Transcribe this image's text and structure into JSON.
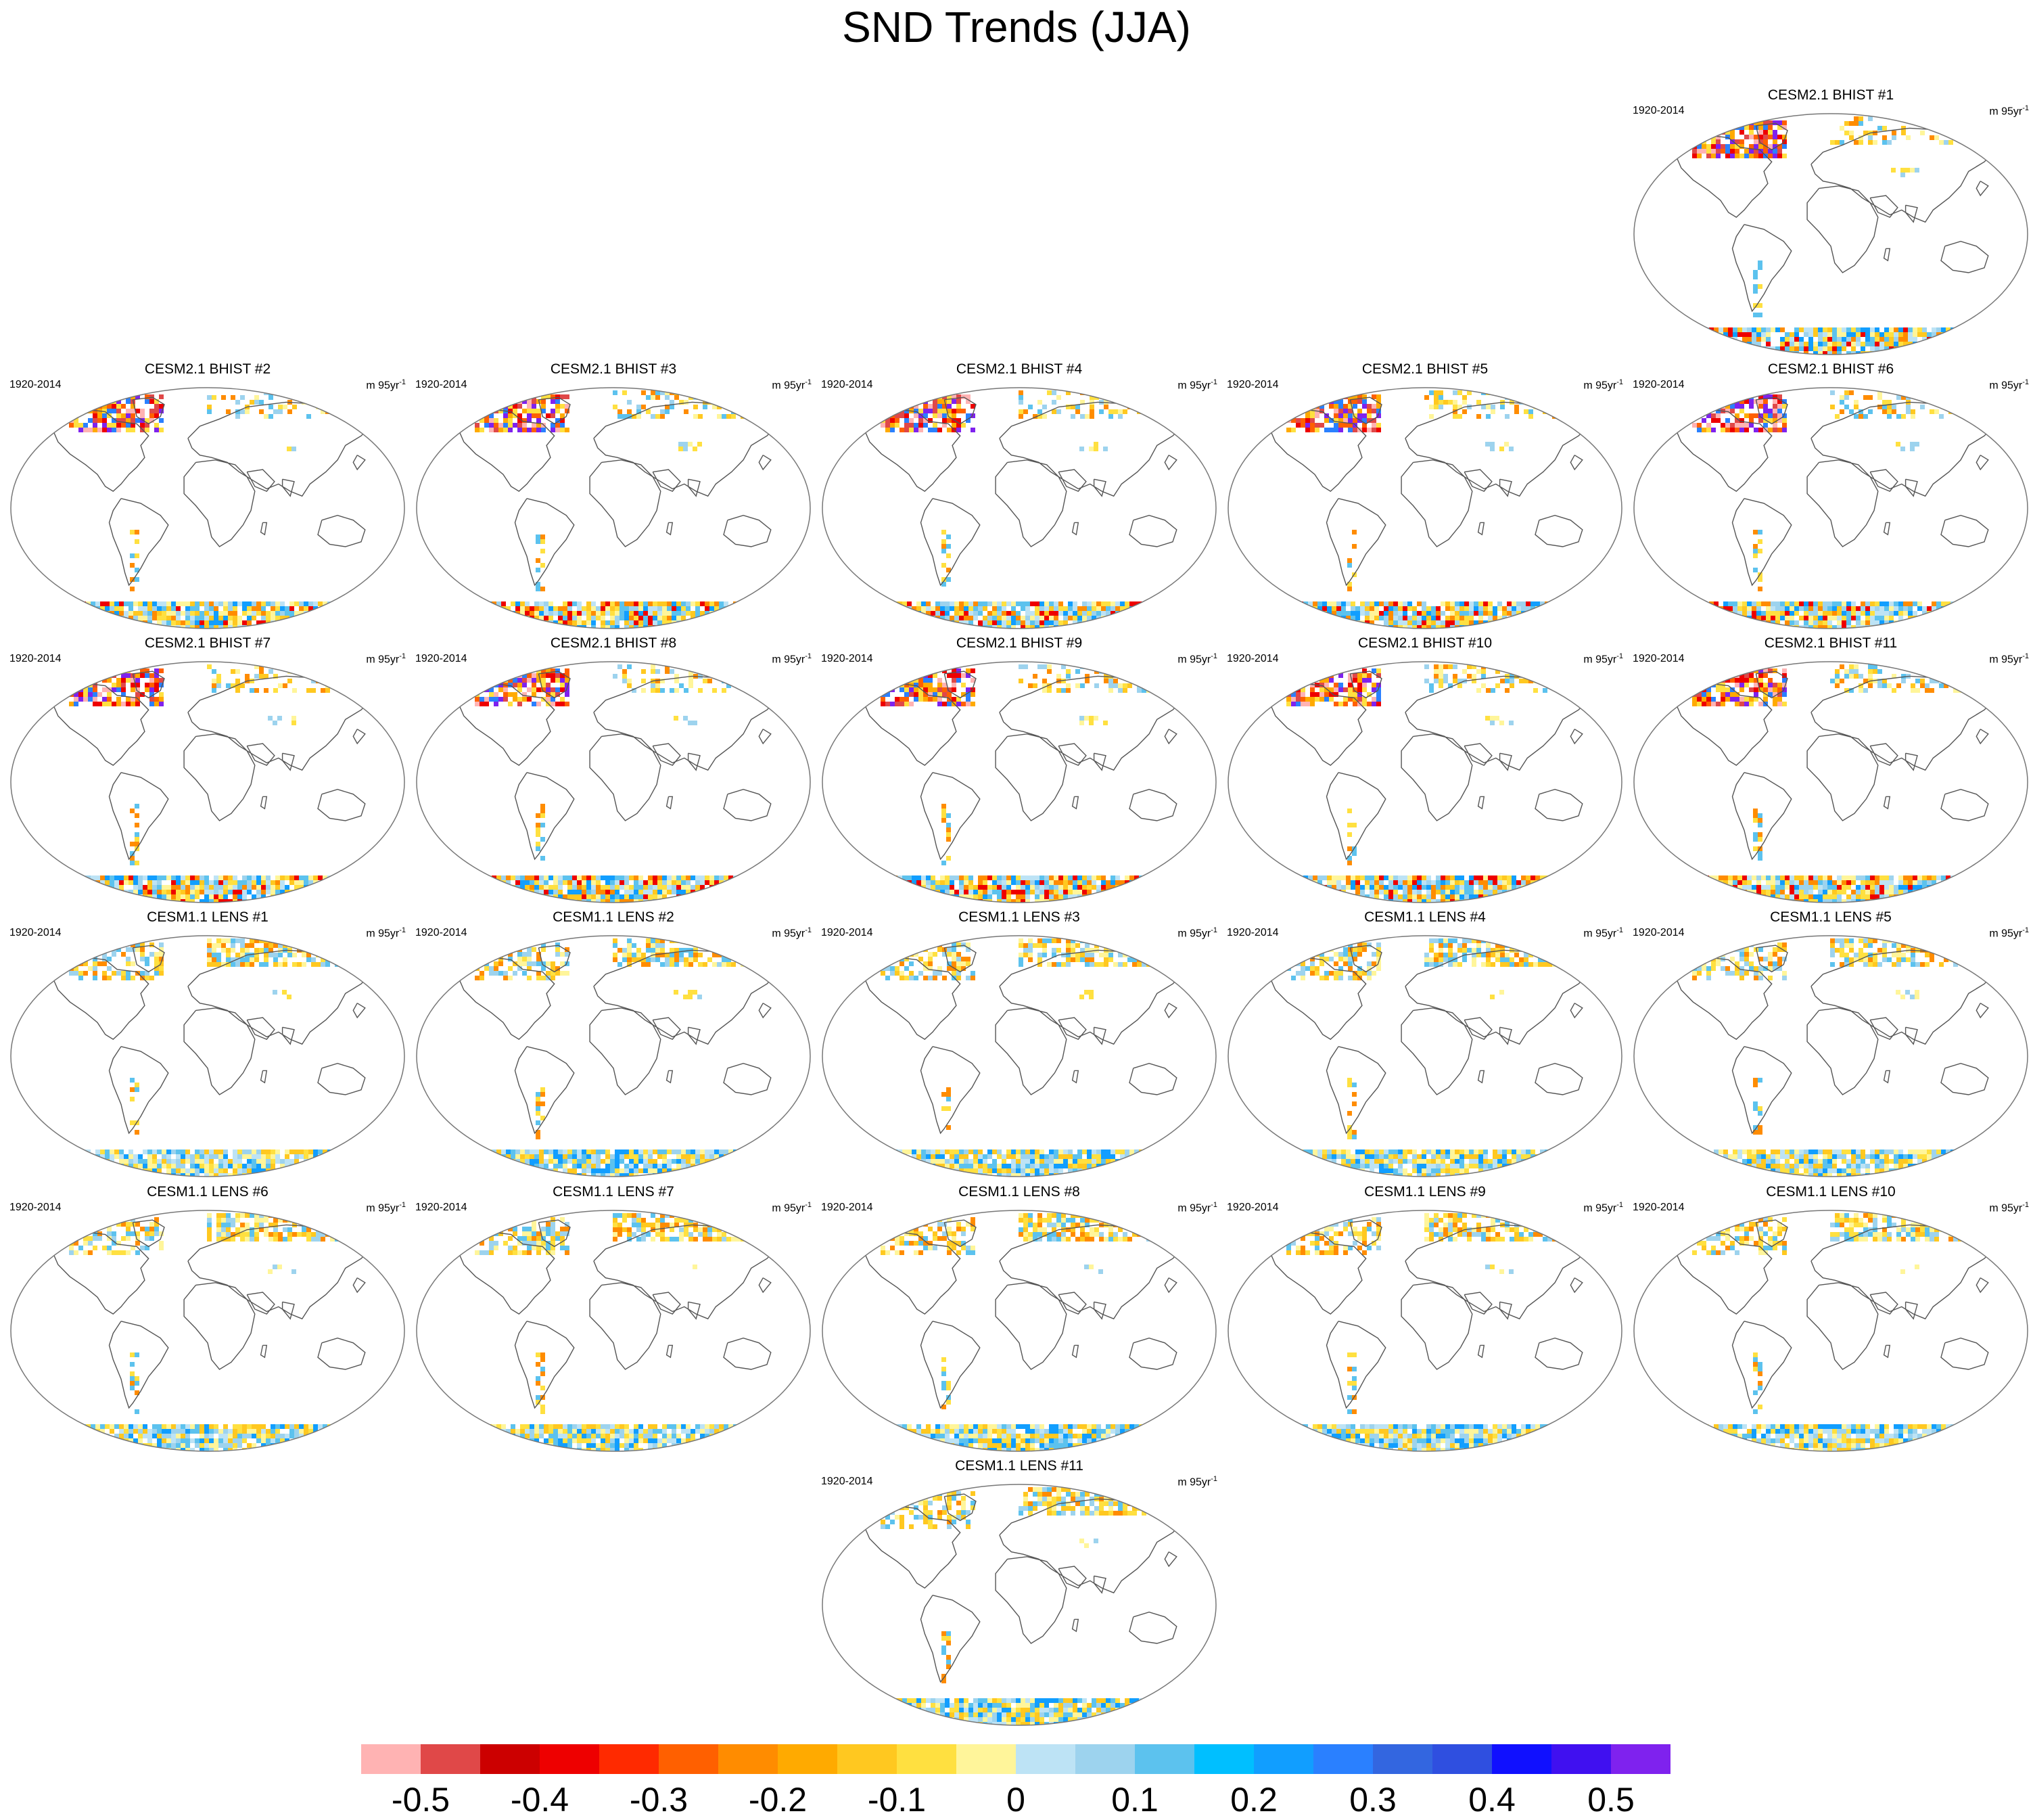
{
  "figure": {
    "title": "SND Trends (JJA)",
    "period": "1920-2014",
    "units_base": "m 95yr",
    "units_exp": "-1"
  },
  "panels": [
    {
      "title": "CESM2.1 BHIST #1",
      "group": "bhist"
    },
    {
      "title": "CESM2.1 BHIST #2",
      "group": "bhist"
    },
    {
      "title": "CESM2.1 BHIST #3",
      "group": "bhist"
    },
    {
      "title": "CESM2.1 BHIST #4",
      "group": "bhist"
    },
    {
      "title": "CESM2.1 BHIST #5",
      "group": "bhist"
    },
    {
      "title": "CESM2.1 BHIST #6",
      "group": "bhist"
    },
    {
      "title": "CESM2.1 BHIST #7",
      "group": "bhist"
    },
    {
      "title": "CESM2.1 BHIST #8",
      "group": "bhist"
    },
    {
      "title": "CESM2.1 BHIST #9",
      "group": "bhist"
    },
    {
      "title": "CESM2.1 BHIST #10",
      "group": "bhist"
    },
    {
      "title": "CESM2.1 BHIST #11",
      "group": "bhist"
    },
    {
      "title": "CESM1.1 LENS #1",
      "group": "lens"
    },
    {
      "title": "CESM1.1 LENS #2",
      "group": "lens"
    },
    {
      "title": "CESM1.1 LENS #3",
      "group": "lens"
    },
    {
      "title": "CESM1.1 LENS #4",
      "group": "lens"
    },
    {
      "title": "CESM1.1 LENS #5",
      "group": "lens"
    },
    {
      "title": "CESM1.1 LENS #6",
      "group": "lens"
    },
    {
      "title": "CESM1.1 LENS #7",
      "group": "lens"
    },
    {
      "title": "CESM1.1 LENS #8",
      "group": "lens"
    },
    {
      "title": "CESM1.1 LENS #9",
      "group": "lens"
    },
    {
      "title": "CESM1.1 LENS #10",
      "group": "lens"
    },
    {
      "title": "CESM1.1 LENS #11",
      "group": "lens"
    }
  ],
  "colorbar": {
    "colors": [
      "#ffb3b3",
      "#e04848",
      "#cc0000",
      "#ee0000",
      "#ff2a00",
      "#ff6000",
      "#ff8c00",
      "#ffaa00",
      "#ffc820",
      "#ffe040",
      "#fff59a",
      "#bde3f5",
      "#9dd3ee",
      "#5cc2ee",
      "#00bfff",
      "#119eff",
      "#2a80ff",
      "#3366e0",
      "#2f4fe0",
      "#1010ff",
      "#4010f0",
      "#7f22ee"
    ],
    "labels": [
      "-0.5",
      "-0.4",
      "-0.3",
      "-0.2",
      "-0.1",
      "0",
      "0.1",
      "0.2",
      "0.3",
      "0.4",
      "0.5"
    ],
    "label_values": [
      -0.5,
      -0.4,
      -0.3,
      -0.2,
      -0.1,
      0,
      0.1,
      0.2,
      0.3,
      0.4,
      0.5
    ],
    "min": -0.55,
    "max": 0.55
  },
  "palette": {
    "coast": "#555555",
    "border": "#777777",
    "antarctic_bhist": [
      "#ff8c00",
      "#ffc820",
      "#ffe040",
      "#9dd3ee",
      "#5cc2ee",
      "#119eff",
      "#ee0000",
      "#fff59a",
      "#bde3f5"
    ],
    "antarctic_lens": [
      "#ffe040",
      "#fff59a",
      "#bde3f5",
      "#9dd3ee",
      "#5cc2ee",
      "#119eff",
      "#ffc820"
    ],
    "arctic_bhist": [
      "#ee0000",
      "#ff6000",
      "#ffaa00",
      "#ffe040",
      "#7f22ee",
      "#2a80ff",
      "#e04848",
      "#ffb3b3"
    ],
    "arctic_lens": [
      "#ffe040",
      "#fff59a",
      "#ffc820",
      "#9dd3ee",
      "#5cc2ee",
      "#ff8c00"
    ]
  }
}
